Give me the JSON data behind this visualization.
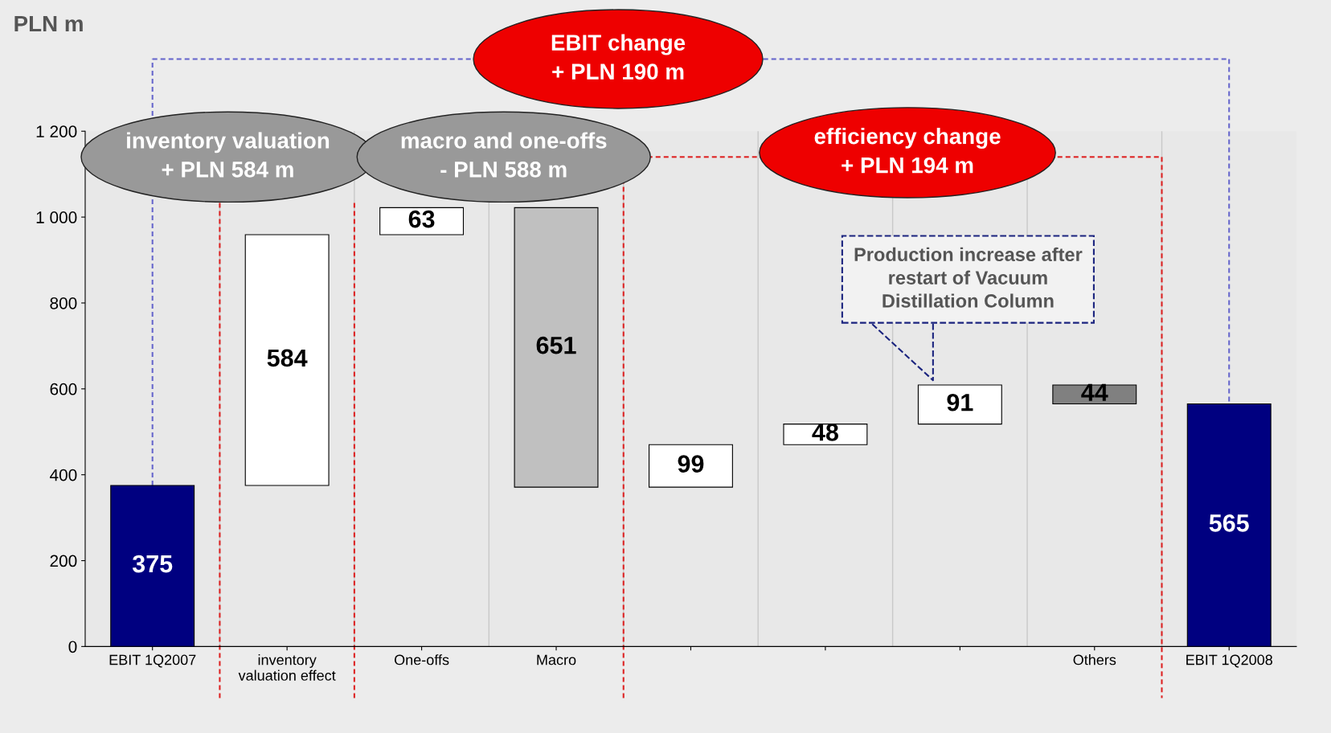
{
  "chart_data": {
    "type": "bar",
    "ylabel": "PLN m",
    "categories": [
      "EBIT 1Q2007",
      "inventory\nvaluation effect",
      "One-offs",
      "Macro",
      null,
      null,
      null,
      "Others",
      "EBIT 1Q2008"
    ],
    "values": [
      375,
      584,
      63,
      651,
      99,
      48,
      91,
      44,
      565
    ],
    "base": [
      0,
      375,
      959,
      371,
      371,
      470,
      518,
      565,
      0
    ],
    "colors": [
      "#000080",
      "#ffffff",
      "#ffffff",
      "#c0c0c0",
      "#ffffff",
      "#ffffff",
      "#ffffff",
      "#808080",
      "#000080"
    ],
    "data_labels": true,
    "ylim": [
      0,
      1200
    ],
    "yticks": [
      0,
      200,
      400,
      600,
      800,
      {
        "value": 1000,
        "label": "1 000"
      },
      {
        "value": 1200,
        "label": "1 200"
      }
    ],
    "annotations": [
      "EBIT change\n+ PLN 190 m",
      "inventory valuation\n+ PLN 584 m",
      "macro and one-offs\n- PLN 588 m",
      "efficiency change\n+ PLN 194 m",
      "Production increase after\nrestart of Vacuum\nDistillation Column"
    ]
  }
}
